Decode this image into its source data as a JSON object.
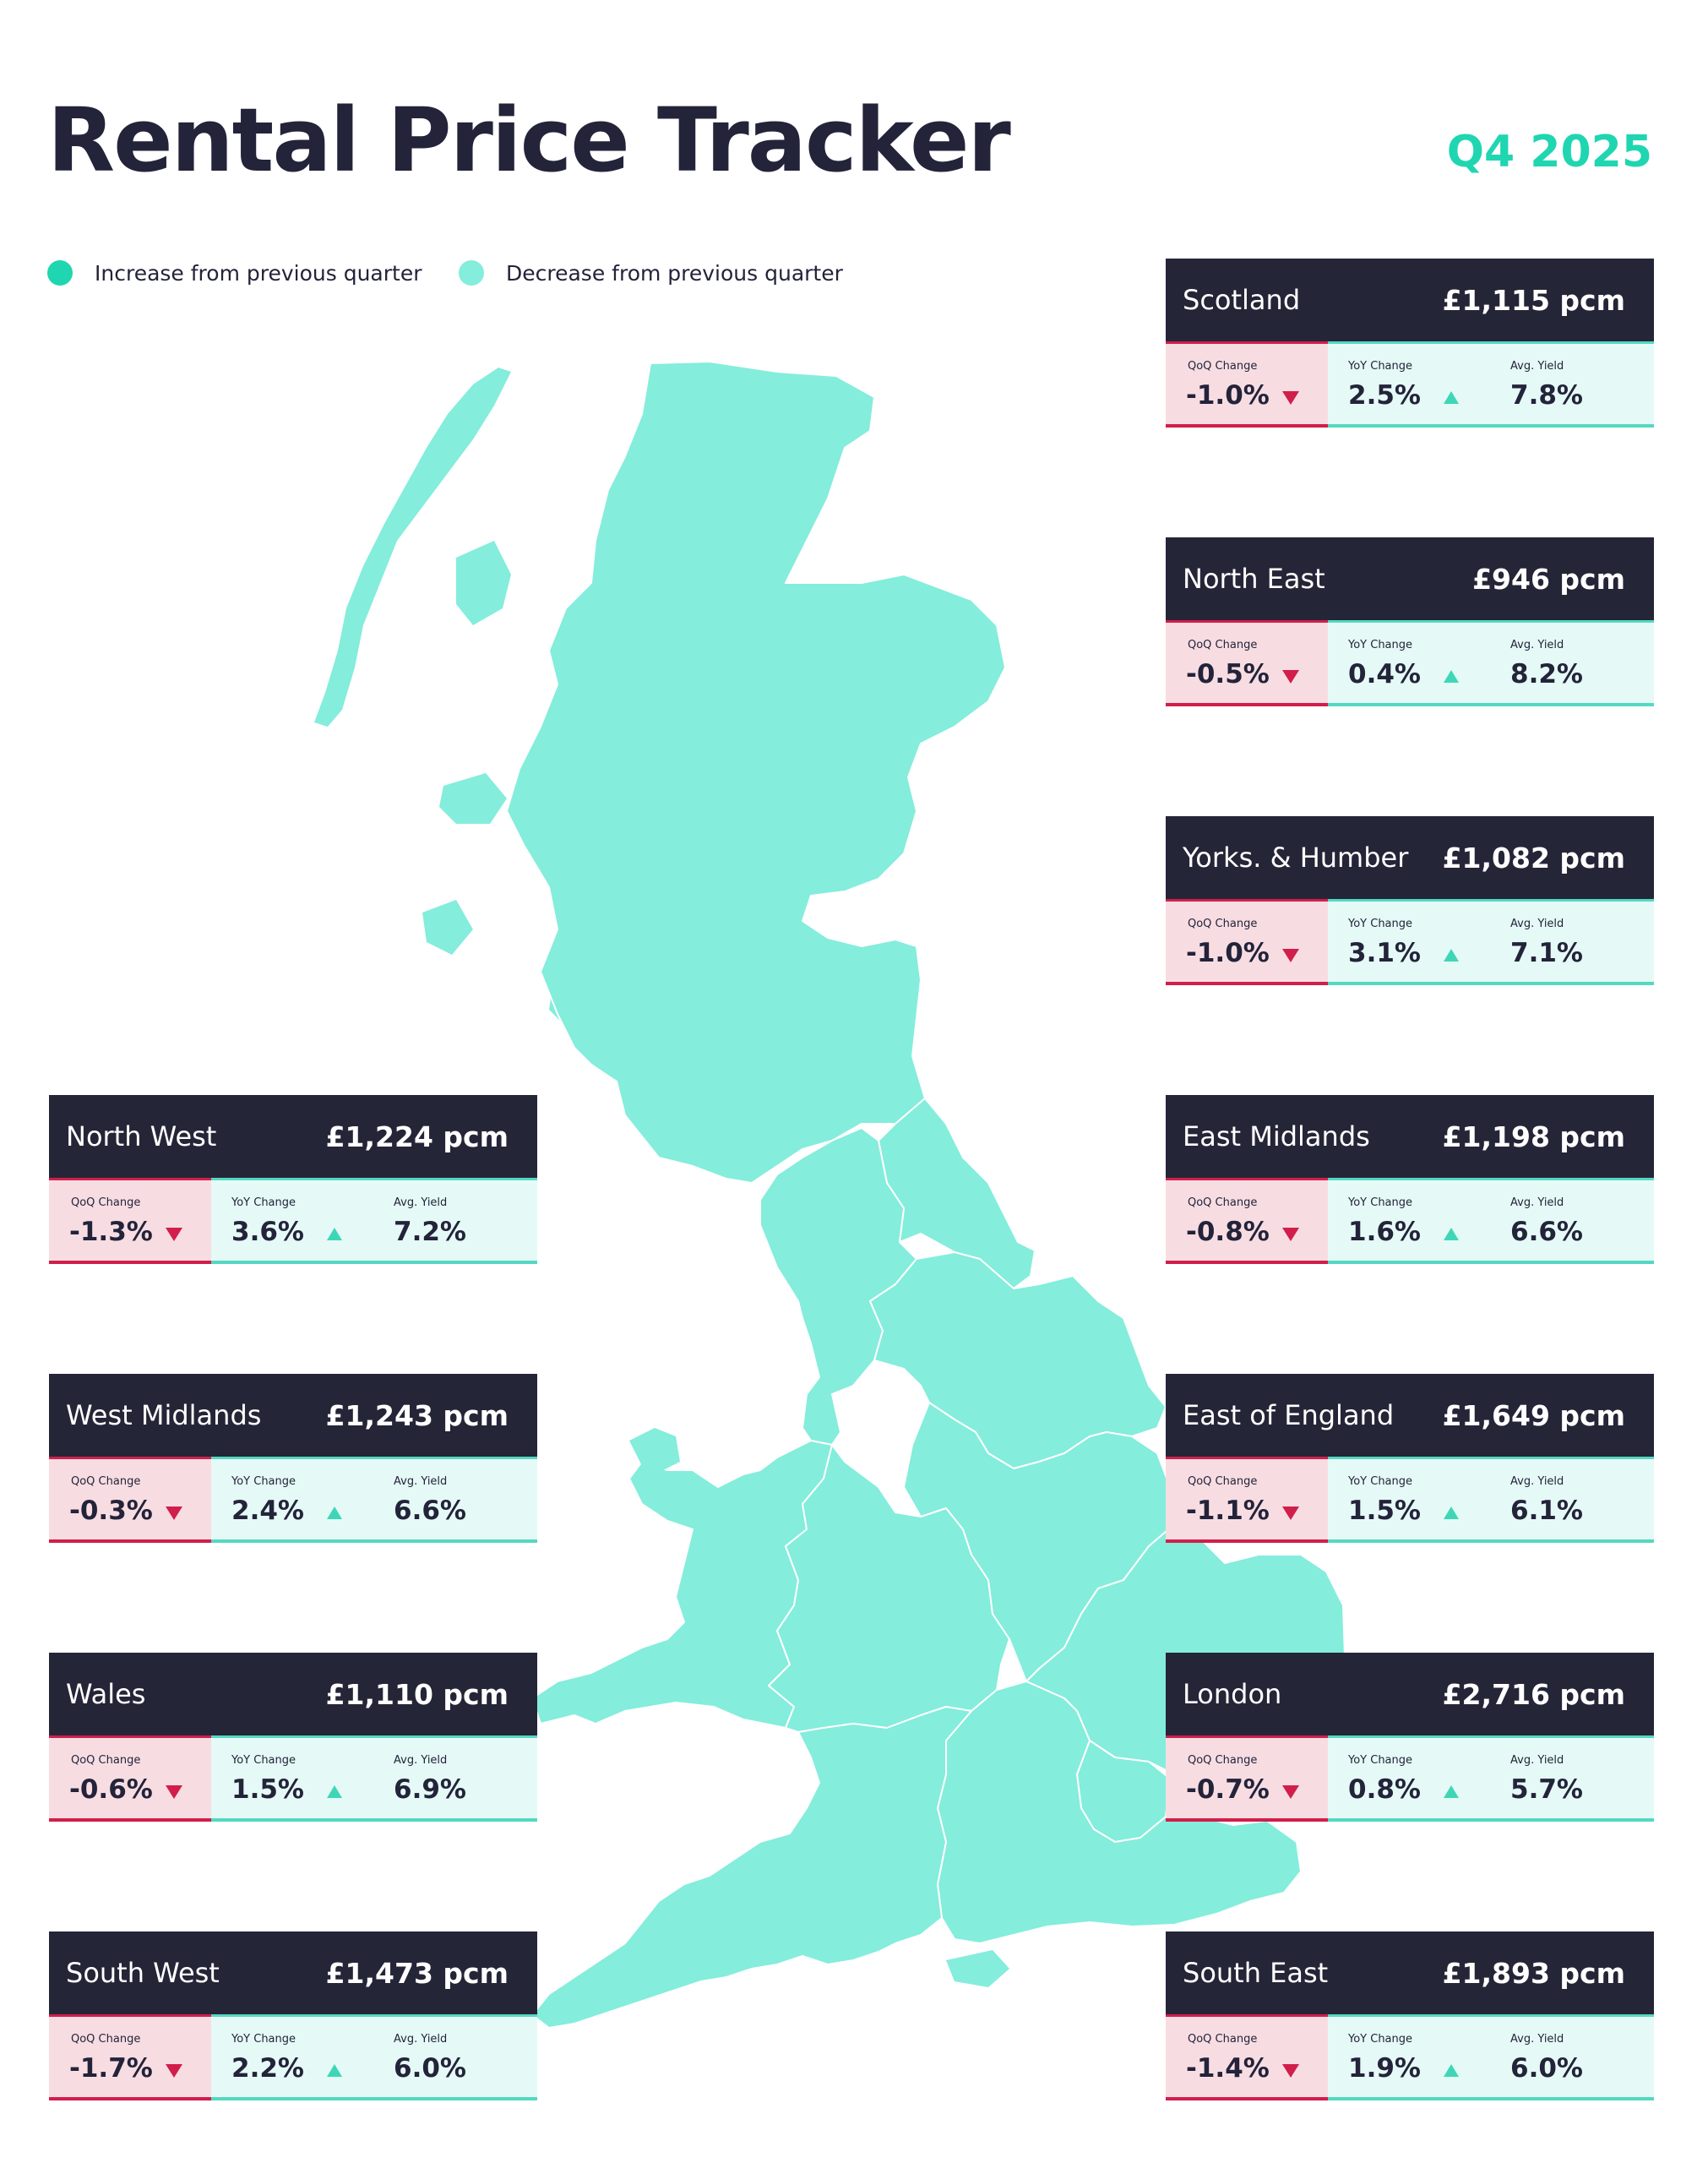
{
  "header": {
    "title": "Rental Price Tracker",
    "quarter": "Q4 2025"
  },
  "legend": {
    "increase_label": "Increase from previous quarter",
    "decrease_label": "Decrease from previous quarter",
    "increase_color": "#1fd6b1",
    "decrease_color": "#84eddc"
  },
  "metric_labels": {
    "qoq": "QoQ Change",
    "yoy": "YoY Change",
    "yield": "Avg. Yield"
  },
  "colors": {
    "card_header": "#252538",
    "negative": "#d11e4b",
    "positive": "#3fd6b8",
    "map_fill": "#84eddc"
  },
  "regions": [
    {
      "name": "Scotland",
      "rent": "£1,115 pcm",
      "qoq": "-1.0%",
      "qoq_direction": "down",
      "yoy": "2.5%",
      "yoy_direction": "up",
      "yield": "7.8%"
    },
    {
      "name": "North East",
      "rent": "£946 pcm",
      "qoq": "-0.5%",
      "qoq_direction": "down",
      "yoy": "0.4%",
      "yoy_direction": "up",
      "yield": "8.2%"
    },
    {
      "name": "Yorks. & Humber",
      "rent": "£1,082 pcm",
      "qoq": "-1.0%",
      "qoq_direction": "down",
      "yoy": "3.1%",
      "yoy_direction": "up",
      "yield": "7.1%"
    },
    {
      "name": "East Midlands",
      "rent": "£1,198 pcm",
      "qoq": "-0.8%",
      "qoq_direction": "down",
      "yoy": "1.6%",
      "yoy_direction": "up",
      "yield": "6.6%"
    },
    {
      "name": "East of England",
      "rent": "£1,649 pcm",
      "qoq": "-1.1%",
      "qoq_direction": "down",
      "yoy": "1.5%",
      "yoy_direction": "up",
      "yield": "6.1%"
    },
    {
      "name": "London",
      "rent": "£2,716 pcm",
      "qoq": "-0.7%",
      "qoq_direction": "down",
      "yoy": "0.8%",
      "yoy_direction": "up",
      "yield": "5.7%"
    },
    {
      "name": "South East",
      "rent": "£1,893 pcm",
      "qoq": "-1.4%",
      "qoq_direction": "down",
      "yoy": "1.9%",
      "yoy_direction": "up",
      "yield": "6.0%"
    },
    {
      "name": "North West",
      "rent": "£1,224 pcm",
      "qoq": "-1.3%",
      "qoq_direction": "down",
      "yoy": "3.6%",
      "yoy_direction": "up",
      "yield": "7.2%"
    },
    {
      "name": "West Midlands",
      "rent": "£1,243 pcm",
      "qoq": "-0.3%",
      "qoq_direction": "down",
      "yoy": "2.4%",
      "yoy_direction": "up",
      "yield": "6.6%"
    },
    {
      "name": "Wales",
      "rent": "£1,110 pcm",
      "qoq": "-0.6%",
      "qoq_direction": "down",
      "yoy": "1.5%",
      "yoy_direction": "up",
      "yield": "6.9%"
    },
    {
      "name": "South West",
      "rent": "£1,473 pcm",
      "qoq": "-1.7%",
      "qoq_direction": "down",
      "yoy": "2.2%",
      "yoy_direction": "up",
      "yield": "6.0%"
    }
  ]
}
